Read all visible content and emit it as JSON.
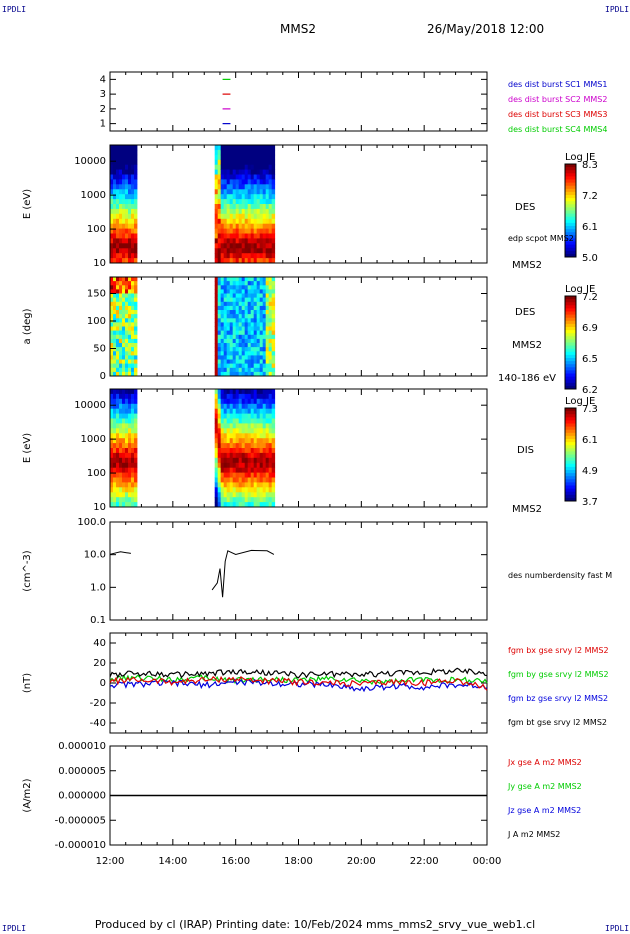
{
  "corners": {
    "tl": "IPDLI",
    "tr": "IPDLI",
    "bl": "IPDLI",
    "br": "IPDLI"
  },
  "header": {
    "title": "MMS2",
    "datetime": "26/May/2018 12:00"
  },
  "footer": {
    "text": "Produced by cl (IRAP)    Printing date: 10/Feb/2024   mms_mms2_srvy_vue_web1.cl"
  },
  "colors": {
    "mms1": "#0000cc",
    "mms2": "#cc00cc",
    "mms3": "#dd0000",
    "mms4": "#00cc00",
    "bx": "#dd0000",
    "by": "#00cc00",
    "bz": "#0000dd",
    "bt": "#000000"
  },
  "chart_data": [
    {
      "type": "line",
      "title": "",
      "ylabel": "",
      "ylim": [
        0.5,
        4.5
      ],
      "yticks": [
        "4",
        "3",
        "2",
        "1"
      ],
      "legend": [
        "des dist burst SC1 MMS1",
        "des dist burst SC2 MMS2",
        "des dist burst SC3 MMS3",
        "des dist burst SC4 MMS4"
      ],
      "series": [
        {
          "name": "des dist burst SC4 MMS4",
          "level": 4,
          "x": [
            "15:35",
            "15:50"
          ]
        },
        {
          "name": "des dist burst SC3 MMS3",
          "level": 3,
          "x": [
            "15:35",
            "15:50"
          ]
        },
        {
          "name": "des dist burst SC2 MMS2",
          "level": 2,
          "x": [
            "15:35",
            "15:50"
          ]
        },
        {
          "name": "des dist burst SC1 MMS1",
          "level": 1,
          "x": [
            "15:35",
            "15:50"
          ]
        }
      ]
    },
    {
      "type": "heatmap",
      "ylabel": "E (eV)",
      "yscale": "log",
      "ylim": [
        10,
        30000
      ],
      "yticks": [
        "10000",
        "1000",
        "100",
        "10"
      ],
      "right_labels": [
        "DES",
        "edp scpot MMS2",
        "MMS2"
      ],
      "colorbar": {
        "label": "Log JE",
        "ticks": [
          "8.3",
          "7.2",
          "6.1",
          "5.0"
        ]
      },
      "intervals": [
        [
          "12:00",
          "12:47"
        ],
        [
          "15:20",
          "17:13"
        ]
      ]
    },
    {
      "type": "heatmap",
      "ylabel": "a (deg)",
      "ylim": [
        0,
        180
      ],
      "yticks": [
        "150",
        "100",
        "50",
        "0"
      ],
      "right_labels": [
        "DES",
        "MMS2",
        "140-186 eV"
      ],
      "colorbar": {
        "label": "Log JE",
        "ticks": [
          "7.2",
          "6.9",
          "6.5",
          "6.2"
        ]
      },
      "intervals": [
        [
          "12:00",
          "12:47"
        ],
        [
          "15:20",
          "17:13"
        ]
      ]
    },
    {
      "type": "heatmap",
      "ylabel": "E (eV)",
      "yscale": "log",
      "ylim": [
        10,
        30000
      ],
      "yticks": [
        "10000",
        "1000",
        "100",
        "10"
      ],
      "right_labels": [
        "DIS",
        "MMS2"
      ],
      "colorbar": {
        "label": "Log JE",
        "ticks": [
          "7.3",
          "6.1",
          "4.9",
          "3.7"
        ]
      },
      "intervals": [
        [
          "12:00",
          "12:47"
        ],
        [
          "15:20",
          "17:13"
        ]
      ]
    },
    {
      "type": "line",
      "ylabel": "(cm^-3)",
      "yscale": "log",
      "ylim": [
        0.1,
        100
      ],
      "yticks": [
        "100.0",
        "10.0",
        "1.0",
        "0.1"
      ],
      "legend": [
        "des numberdensity fast M"
      ],
      "series": [
        {
          "name": "des numberdensity fast M",
          "x": [
            "12:00",
            "12:20",
            "12:40",
            "15:15",
            "15:25",
            "15:30",
            "15:35",
            "15:40",
            "15:45",
            "16:00",
            "16:30",
            "17:00",
            "17:13"
          ],
          "values": [
            11,
            13,
            12,
            0.8,
            1.5,
            4,
            0.5,
            6,
            12,
            11,
            13,
            12,
            11
          ]
        }
      ]
    },
    {
      "type": "line",
      "ylabel": "(nT)",
      "ylim": [
        -50,
        50
      ],
      "yticks": [
        "40",
        "20",
        "0",
        "-20",
        "-40"
      ],
      "legend": [
        "fgm bx gse srvy l2 MMS2",
        "fgm by gse srvy l2 MMS2",
        "fgm bz gse srvy l2 MMS2",
        "fgm bt gse srvy l2 MMS2"
      ],
      "series": [
        {
          "name": "fgm bt gse srvy l2 MMS2",
          "x": [
            "12:00",
            "13:00",
            "14:00",
            "15:00",
            "16:00",
            "17:00",
            "18:00",
            "19:00",
            "20:00",
            "21:00",
            "22:00",
            "23:00",
            "24:00"
          ],
          "values": [
            8,
            10,
            8,
            9,
            11,
            10,
            8,
            9,
            8,
            10,
            11,
            12,
            10
          ]
        },
        {
          "name": "fgm bx gse srvy l2 MMS2",
          "x": [
            "12:00",
            "13:00",
            "14:00",
            "15:00",
            "16:00",
            "17:00",
            "18:00",
            "19:00",
            "20:00",
            "21:00",
            "22:00",
            "23:00",
            "24:00"
          ],
          "values": [
            2,
            3,
            1,
            3,
            4,
            2,
            1,
            0,
            -1,
            1,
            0,
            3,
            -5
          ]
        },
        {
          "name": "fgm by gse srvy l2 MMS2",
          "x": [
            "12:00",
            "13:00",
            "14:00",
            "15:00",
            "16:00",
            "17:00",
            "18:00",
            "19:00",
            "20:00",
            "21:00",
            "22:00",
            "23:00",
            "24:00"
          ],
          "values": [
            4,
            5,
            4,
            5,
            3,
            4,
            3,
            4,
            2,
            1,
            4,
            3,
            2
          ]
        },
        {
          "name": "fgm bz gse srvy l2 MMS2",
          "x": [
            "12:00",
            "13:00",
            "14:00",
            "15:00",
            "16:00",
            "17:00",
            "18:00",
            "19:00",
            "20:00",
            "21:00",
            "22:00",
            "23:00",
            "24:00"
          ],
          "values": [
            -2,
            -1,
            0,
            -2,
            1,
            0,
            -1,
            -2,
            -6,
            -3,
            -4,
            -2,
            -3
          ]
        }
      ]
    },
    {
      "type": "line",
      "ylabel": "(A/m2)",
      "ylim": [
        -1e-05,
        1e-05
      ],
      "yticks": [
        "0.000010",
        "0.000005",
        "0.000000",
        "-0.000005",
        "-0.000010"
      ],
      "legend": [
        "Jx gse A m2 MMS2",
        "Jy gse A m2 MMS2",
        "Jz gse A m2 MMS2",
        "J A m2 MMS2"
      ],
      "xticks": [
        "12:00",
        "14:00",
        "16:00",
        "18:00",
        "20:00",
        "22:00",
        "00:00"
      ],
      "series": [
        {
          "name": "J A m2 MMS2",
          "x": [
            "12:00",
            "24:00"
          ],
          "values": [
            0,
            0
          ]
        }
      ]
    }
  ]
}
